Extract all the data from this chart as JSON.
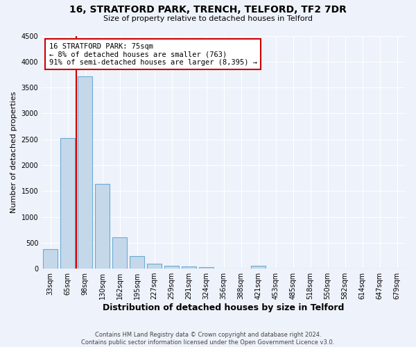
{
  "title": "16, STRATFORD PARK, TRENCH, TELFORD, TF2 7DR",
  "subtitle": "Size of property relative to detached houses in Telford",
  "xlabel": "Distribution of detached houses by size in Telford",
  "ylabel": "Number of detached properties",
  "categories": [
    "33sqm",
    "65sqm",
    "98sqm",
    "130sqm",
    "162sqm",
    "195sqm",
    "227sqm",
    "259sqm",
    "291sqm",
    "324sqm",
    "356sqm",
    "388sqm",
    "421sqm",
    "453sqm",
    "485sqm",
    "518sqm",
    "550sqm",
    "582sqm",
    "614sqm",
    "647sqm",
    "679sqm"
  ],
  "values": [
    380,
    2520,
    3720,
    1640,
    600,
    240,
    100,
    60,
    45,
    30,
    0,
    0,
    60,
    0,
    0,
    0,
    0,
    0,
    0,
    0,
    0
  ],
  "bar_color": "#c5d8ea",
  "bar_edge_color": "#6aaad4",
  "vline_color": "#cc0000",
  "vline_x_index": 1.0,
  "annotation_text": "16 STRATFORD PARK: 75sqm\n← 8% of detached houses are smaller (763)\n91% of semi-detached houses are larger (8,395) →",
  "annotation_box_facecolor": "#ffffff",
  "annotation_box_edgecolor": "#cc0000",
  "ylim": [
    0,
    4500
  ],
  "yticks": [
    0,
    500,
    1000,
    1500,
    2000,
    2500,
    3000,
    3500,
    4000,
    4500
  ],
  "background_color": "#eef2fa",
  "grid_color": "#ffffff",
  "footer_text": "Contains HM Land Registry data © Crown copyright and database right 2024.\nContains public sector information licensed under the Open Government Licence v3.0.",
  "title_fontsize": 10,
  "subtitle_fontsize": 8,
  "ylabel_fontsize": 8,
  "xlabel_fontsize": 9,
  "tick_fontsize": 7,
  "annotation_fontsize": 7.5,
  "footer_fontsize": 6
}
